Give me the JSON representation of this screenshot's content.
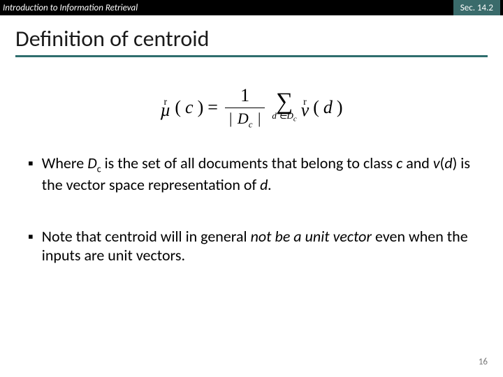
{
  "header": {
    "left": "Introduction to Information Retrieval",
    "right": "Sec. 14.2"
  },
  "title": "Definition of centroid",
  "formula": {
    "vec_marker": "r",
    "mu": "µ",
    "c": "c",
    "eq": "=",
    "num_one": "1",
    "den_D": "D",
    "den_c": "c",
    "sum_symbol": "∑",
    "sum_sub": "d ∈D",
    "sum_sub_c": "c",
    "v": "v",
    "d": "d"
  },
  "bullets": [
    {
      "prefix": "Where ",
      "Dc_D": "D",
      "Dc_c": "c",
      "mid1": " is the set of all documents that belong to class ",
      "c": "c",
      "mid2": " and ",
      "v": "v",
      "openp": "(",
      "d": "d",
      "closep": ")",
      "mid3": " is the vector space representation of ",
      "d2": "d."
    },
    {
      "text1": "Note that centroid will in general ",
      "em": "not be a unit vector",
      "text2": " even when the inputs are unit vectors."
    }
  ],
  "page_number": "16",
  "colors": {
    "header_bg": "#000000",
    "section_bg": "#3a6b6b",
    "underline": "#2f6e6e",
    "pagenum": "#7a7a7a"
  }
}
